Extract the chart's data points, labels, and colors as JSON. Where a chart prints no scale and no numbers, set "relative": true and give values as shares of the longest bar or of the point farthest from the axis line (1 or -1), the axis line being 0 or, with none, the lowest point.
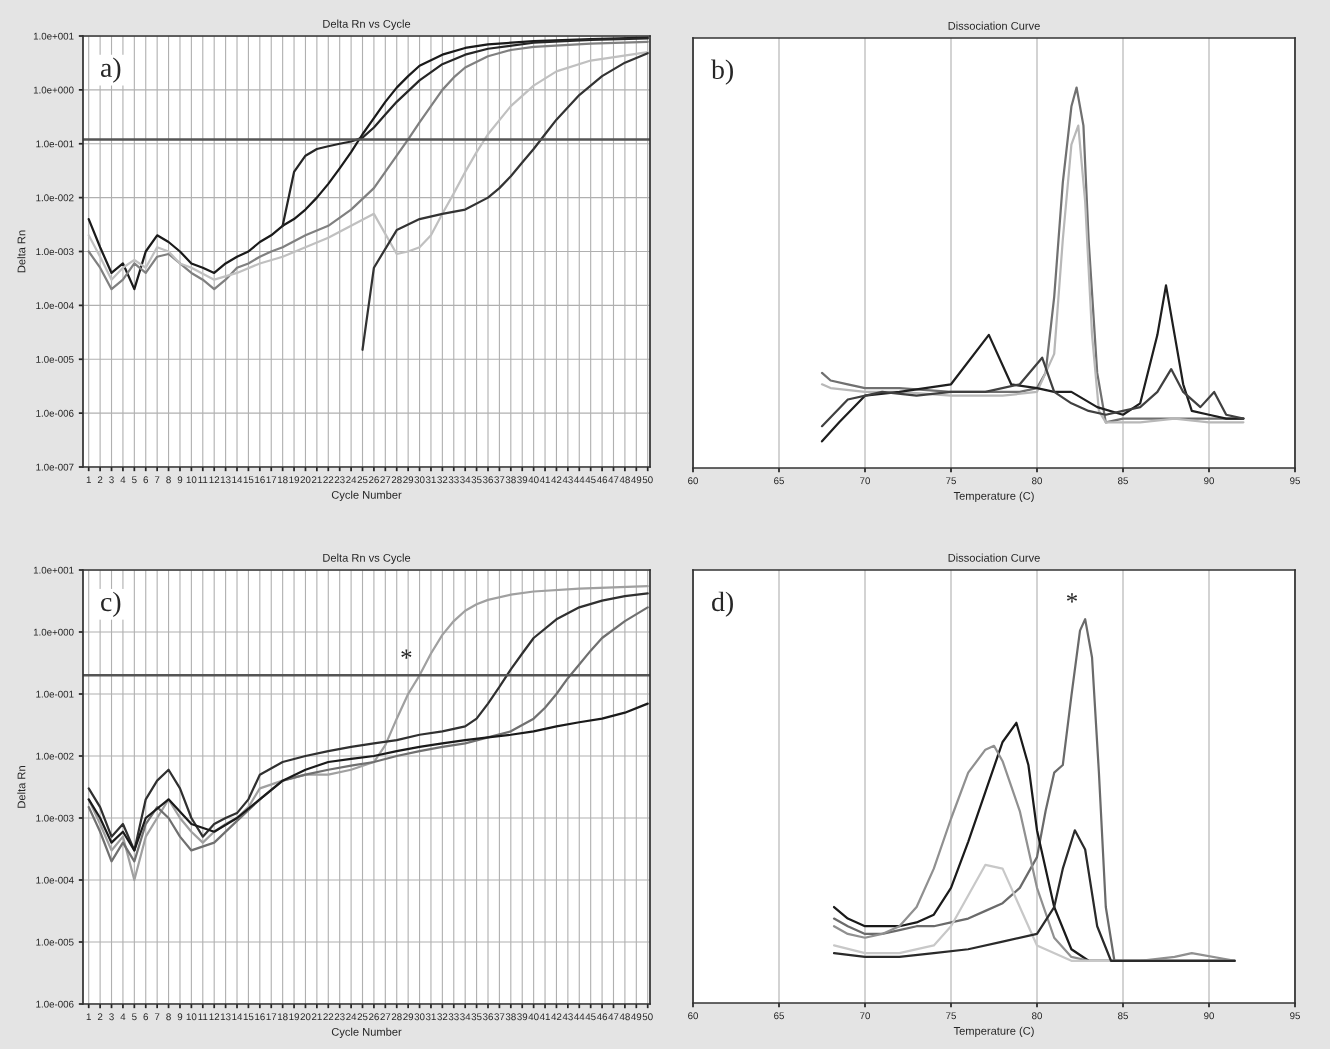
{
  "chart_data": [
    {
      "type": "line",
      "title": "Delta Rn vs Cycle",
      "xlabel": "Cycle Number",
      "ylabel": "Delta Rn",
      "log": true,
      "grid": true,
      "legend": false,
      "xlim": [
        0.5,
        50.2
      ],
      "xticks": [
        1,
        2,
        3,
        4,
        5,
        6,
        7,
        8,
        9,
        10,
        11,
        12,
        13,
        14,
        15,
        16,
        17,
        18,
        19,
        20,
        21,
        22,
        23,
        24,
        25,
        26,
        27,
        28,
        29,
        30,
        31,
        32,
        33,
        34,
        35,
        36,
        37,
        38,
        39,
        40,
        41,
        42,
        43,
        44,
        45,
        46,
        47,
        48,
        49,
        50
      ],
      "ylim": [
        1e-07,
        10
      ],
      "yticks": [
        {
          "value": 1e-07,
          "label": "1.0e-007"
        },
        {
          "value": 1e-06,
          "label": "1.0e-006"
        },
        {
          "value": 1e-05,
          "label": "1.0e-005"
        },
        {
          "value": 0.0001,
          "label": "1.0e-004"
        },
        {
          "value": 0.001,
          "label": "1.0e-003"
        },
        {
          "value": 0.01,
          "label": "1.0e-002"
        },
        {
          "value": 0.1,
          "label": "1.0e-001"
        },
        {
          "value": 1,
          "label": "1.0e+000"
        },
        {
          "value": 10,
          "label": "1.0e+001"
        }
      ],
      "ref_lines": [
        {
          "axis": "y",
          "value": 0.12,
          "color": "#555555"
        }
      ],
      "annotations": [
        "a)"
      ],
      "series": [
        {
          "color": "#1a1a1a",
          "x": [
            1,
            2,
            3,
            4,
            5,
            6,
            7,
            8,
            9,
            10,
            11,
            12,
            13,
            14,
            15,
            16,
            17,
            18,
            19,
            20,
            21,
            22,
            23,
            24,
            25,
            26,
            27,
            28,
            29,
            30,
            32,
            34,
            36,
            40,
            45,
            50
          ],
          "values": [
            0.004,
            0.0012,
            0.0004,
            0.0006,
            0.0002,
            0.001,
            0.002,
            0.0015,
            0.001,
            0.0006,
            0.0005,
            0.0004,
            0.0006,
            0.0008,
            0.001,
            0.0015,
            0.002,
            0.003,
            0.004,
            0.006,
            0.01,
            0.018,
            0.035,
            0.07,
            0.15,
            0.3,
            0.6,
            1.1,
            1.8,
            2.8,
            4.5,
            6,
            7,
            8,
            8.8,
            9.3
          ]
        },
        {
          "color": "#808080",
          "x": [
            1,
            2,
            3,
            4,
            5,
            6,
            7,
            8,
            9,
            10,
            11,
            12,
            13,
            14,
            15,
            16,
            17,
            18,
            20,
            22,
            24,
            26,
            27,
            28,
            29,
            30,
            31,
            32,
            33,
            34,
            36,
            38,
            40,
            45,
            50
          ],
          "values": [
            0.001,
            0.0005,
            0.0002,
            0.0003,
            0.0006,
            0.0004,
            0.0008,
            0.0009,
            0.0006,
            0.0004,
            0.0003,
            0.0002,
            0.0003,
            0.0005,
            0.0006,
            0.0008,
            0.001,
            0.0012,
            0.002,
            0.003,
            0.006,
            0.015,
            0.03,
            0.06,
            0.12,
            0.25,
            0.5,
            1,
            1.7,
            2.6,
            4.2,
            5.5,
            6.3,
            7.2,
            7.8
          ]
        },
        {
          "color": "#c0c0c0",
          "x": [
            1,
            2,
            3,
            4,
            5,
            6,
            7,
            8,
            9,
            10,
            12,
            14,
            16,
            18,
            20,
            22,
            24,
            26,
            28,
            29,
            30,
            31,
            32,
            33,
            34,
            35,
            36,
            38,
            40,
            42,
            45,
            50
          ],
          "values": [
            0.002,
            0.0008,
            0.0003,
            0.0005,
            0.0007,
            0.0005,
            0.0012,
            0.001,
            0.0006,
            0.0005,
            0.0003,
            0.0004,
            0.0006,
            0.0008,
            0.0012,
            0.0018,
            0.003,
            0.005,
            0.0009,
            0.001,
            0.0012,
            0.002,
            0.005,
            0.012,
            0.03,
            0.07,
            0.15,
            0.5,
            1.2,
            2.2,
            3.5,
            5
          ]
        },
        {
          "color": "#333333",
          "x": [
            25,
            26,
            28,
            30,
            32,
            34,
            36,
            37,
            38,
            39,
            40,
            41,
            42,
            44,
            46,
            48,
            50
          ],
          "values": [
            1.5e-05,
            0.0005,
            0.0025,
            0.004,
            0.005,
            0.006,
            0.01,
            0.015,
            0.025,
            0.045,
            0.08,
            0.15,
            0.28,
            0.8,
            1.8,
            3.2,
            4.8
          ]
        },
        {
          "color": "#262626",
          "x": [
            18,
            19,
            20,
            21,
            22,
            23,
            24,
            25,
            26,
            27,
            28,
            30,
            32,
            34,
            36,
            40,
            45,
            50
          ],
          "values": [
            0.003,
            0.03,
            0.06,
            0.08,
            0.09,
            0.1,
            0.11,
            0.13,
            0.2,
            0.35,
            0.6,
            1.5,
            3,
            4.5,
            5.8,
            7.5,
            8.5,
            9
          ]
        }
      ]
    },
    {
      "type": "line",
      "title": "Dissociation Curve",
      "xlabel": "Temperature (C)",
      "relative": true,
      "grid": "x",
      "legend": false,
      "xlim": [
        60,
        95
      ],
      "xticks": [
        60,
        65,
        70,
        75,
        80,
        85,
        90,
        95
      ],
      "annotations": [
        "b)"
      ],
      "series": [
        {
          "color": "#707070",
          "x": [
            67.5,
            68,
            69,
            70,
            72,
            75,
            78,
            79,
            80,
            80.5,
            81,
            81.5,
            82,
            82.3,
            82.7,
            83,
            83.5,
            84,
            85,
            87,
            90,
            92
          ],
          "values": [
            0.25,
            0.23,
            0.22,
            0.21,
            0.21,
            0.2,
            0.2,
            0.2,
            0.21,
            0.25,
            0.45,
            0.75,
            0.95,
            1,
            0.9,
            0.6,
            0.25,
            0.12,
            0.13,
            0.13,
            0.13,
            0.13
          ]
        },
        {
          "color": "#b8b8b8",
          "x": [
            67.5,
            68,
            70,
            72,
            75,
            78,
            80,
            81,
            81.5,
            82,
            82.4,
            82.8,
            83.2,
            83.6,
            84,
            86,
            88,
            90,
            92
          ],
          "values": [
            0.22,
            0.21,
            0.2,
            0.2,
            0.19,
            0.19,
            0.2,
            0.3,
            0.6,
            0.85,
            0.9,
            0.7,
            0.35,
            0.15,
            0.12,
            0.12,
            0.13,
            0.12,
            0.12
          ]
        },
        {
          "color": "#1e1e1e",
          "x": [
            67.5,
            68.5,
            70,
            72,
            75,
            77.2,
            78.5,
            80,
            81,
            82,
            83.5,
            85,
            86,
            87,
            87.5,
            88,
            88.5,
            89,
            90,
            91,
            92
          ],
          "values": [
            0.07,
            0.12,
            0.19,
            0.2,
            0.22,
            0.35,
            0.22,
            0.21,
            0.2,
            0.2,
            0.16,
            0.14,
            0.17,
            0.35,
            0.48,
            0.35,
            0.22,
            0.15,
            0.14,
            0.13,
            0.13
          ]
        },
        {
          "color": "#404040",
          "x": [
            67.5,
            69,
            71,
            73,
            75,
            77,
            79,
            80.3,
            81,
            82,
            83,
            84,
            85,
            86,
            87,
            87.8,
            88.5,
            89.5,
            90.3,
            91,
            92
          ],
          "values": [
            0.11,
            0.18,
            0.2,
            0.19,
            0.2,
            0.2,
            0.22,
            0.29,
            0.2,
            0.17,
            0.15,
            0.14,
            0.15,
            0.16,
            0.2,
            0.26,
            0.2,
            0.16,
            0.2,
            0.14,
            0.13
          ]
        }
      ]
    },
    {
      "type": "line",
      "title": "Delta Rn vs Cycle",
      "xlabel": "Cycle Number",
      "ylabel": "Delta Rn",
      "log": true,
      "grid": true,
      "legend": false,
      "xlim": [
        0.5,
        50.2
      ],
      "xticks": [
        1,
        2,
        3,
        4,
        5,
        6,
        7,
        8,
        9,
        10,
        11,
        12,
        13,
        14,
        15,
        16,
        17,
        18,
        19,
        20,
        21,
        22,
        23,
        24,
        25,
        26,
        27,
        28,
        29,
        30,
        31,
        32,
        33,
        34,
        35,
        36,
        37,
        38,
        39,
        40,
        41,
        42,
        43,
        44,
        45,
        46,
        47,
        48,
        49,
        50
      ],
      "ylim": [
        1e-06,
        10
      ],
      "yticks": [
        {
          "value": 1e-06,
          "label": "1.0e-006"
        },
        {
          "value": 1e-05,
          "label": "1.0e-005"
        },
        {
          "value": 0.0001,
          "label": "1.0e-004"
        },
        {
          "value": 0.001,
          "label": "1.0e-003"
        },
        {
          "value": 0.01,
          "label": "1.0e-002"
        },
        {
          "value": 0.1,
          "label": "1.0e-001"
        },
        {
          "value": 1,
          "label": "1.0e+000"
        },
        {
          "value": 10,
          "label": "1.0e+001"
        }
      ],
      "ref_lines": [
        {
          "axis": "y",
          "value": 0.2,
          "color": "#555555"
        }
      ],
      "annotations": [
        "c)",
        {
          "text": "*",
          "x": 30,
          "y": 0.2
        }
      ],
      "series": [
        {
          "color": "#a0a0a0",
          "x": [
            1,
            2,
            3,
            4,
            5,
            6,
            7,
            8,
            9,
            10,
            11,
            12,
            13,
            14,
            15,
            16,
            18,
            20,
            22,
            24,
            26,
            27,
            28,
            29,
            30,
            31,
            32,
            33,
            34,
            35,
            36,
            38,
            40,
            44,
            50
          ],
          "values": [
            0.002,
            0.0008,
            0.0003,
            0.0005,
            0.0001,
            0.0005,
            0.001,
            0.002,
            0.001,
            0.0006,
            0.0004,
            0.0006,
            0.0008,
            0.001,
            0.0015,
            0.003,
            0.004,
            0.005,
            0.005,
            0.006,
            0.008,
            0.015,
            0.04,
            0.1,
            0.2,
            0.45,
            0.9,
            1.5,
            2.2,
            2.8,
            3.3,
            4,
            4.5,
            5,
            5.5
          ]
        },
        {
          "color": "#303030",
          "x": [
            1,
            2,
            3,
            4,
            5,
            6,
            7,
            8,
            9,
            10,
            11,
            12,
            13,
            14,
            15,
            16,
            18,
            20,
            22,
            24,
            26,
            28,
            30,
            32,
            34,
            35,
            36,
            37,
            38,
            39,
            40,
            42,
            44,
            46,
            48,
            50
          ],
          "values": [
            0.003,
            0.0015,
            0.0005,
            0.0008,
            0.0003,
            0.002,
            0.004,
            0.006,
            0.003,
            0.001,
            0.0005,
            0.0008,
            0.001,
            0.0012,
            0.002,
            0.005,
            0.008,
            0.01,
            0.012,
            0.014,
            0.016,
            0.018,
            0.022,
            0.025,
            0.03,
            0.04,
            0.07,
            0.13,
            0.25,
            0.45,
            0.8,
            1.6,
            2.5,
            3.2,
            3.8,
            4.2
          ]
        },
        {
          "color": "#707070",
          "x": [
            1,
            2,
            3,
            4,
            5,
            6,
            7,
            8,
            9,
            10,
            12,
            14,
            16,
            18,
            20,
            22,
            24,
            26,
            28,
            30,
            32,
            34,
            36,
            38,
            40,
            41,
            42,
            43,
            44,
            45,
            46,
            48,
            50
          ],
          "values": [
            0.0015,
            0.0006,
            0.0002,
            0.0004,
            0.0002,
            0.0008,
            0.0015,
            0.001,
            0.0005,
            0.0003,
            0.0004,
            0.0009,
            0.002,
            0.004,
            0.005,
            0.006,
            0.007,
            0.008,
            0.01,
            0.012,
            0.014,
            0.016,
            0.02,
            0.025,
            0.04,
            0.06,
            0.1,
            0.18,
            0.3,
            0.5,
            0.8,
            1.5,
            2.5
          ]
        },
        {
          "color": "#1a1a1a",
          "x": [
            1,
            2,
            3,
            4,
            5,
            6,
            8,
            10,
            12,
            14,
            16,
            18,
            20,
            22,
            24,
            26,
            28,
            30,
            32,
            34,
            36,
            38,
            40,
            42,
            44,
            46,
            48,
            50
          ],
          "values": [
            0.002,
            0.001,
            0.0004,
            0.0006,
            0.0003,
            0.001,
            0.002,
            0.0008,
            0.0006,
            0.001,
            0.002,
            0.004,
            0.006,
            0.008,
            0.009,
            0.01,
            0.012,
            0.014,
            0.016,
            0.018,
            0.02,
            0.022,
            0.025,
            0.03,
            0.035,
            0.04,
            0.05,
            0.07
          ]
        }
      ]
    },
    {
      "type": "line",
      "title": "Dissociation Curve",
      "xlabel": "Temperature (C)",
      "relative": true,
      "grid": "x",
      "legend": false,
      "xlim": [
        60,
        95
      ],
      "xticks": [
        60,
        65,
        70,
        75,
        80,
        85,
        90,
        95
      ],
      "annotations": [
        "d)",
        {
          "text": "*",
          "x": 82.8,
          "y": 1
        }
      ],
      "series": [
        {
          "color": "#6a6a6a",
          "x": [
            68.2,
            69,
            70,
            71,
            72,
            73,
            74,
            75,
            76,
            77,
            78,
            79,
            80,
            80.5,
            81,
            81.5,
            82,
            82.5,
            82.8,
            83.2,
            83.6,
            84,
            84.5,
            85,
            87,
            89,
            91.5
          ],
          "values": [
            0.22,
            0.2,
            0.18,
            0.18,
            0.19,
            0.2,
            0.2,
            0.21,
            0.22,
            0.24,
            0.26,
            0.3,
            0.38,
            0.5,
            0.6,
            0.62,
            0.8,
            0.97,
            1,
            0.9,
            0.6,
            0.25,
            0.11,
            0.11,
            0.11,
            0.11,
            0.11
          ]
        },
        {
          "color": "#1a1a1a",
          "x": [
            68.2,
            69,
            70,
            71,
            72,
            73,
            74,
            75,
            76,
            77,
            78,
            78.8,
            79.5,
            80,
            81,
            82,
            83,
            84,
            85,
            88,
            91.5
          ],
          "values": [
            0.25,
            0.22,
            0.2,
            0.2,
            0.2,
            0.21,
            0.23,
            0.3,
            0.42,
            0.55,
            0.68,
            0.73,
            0.62,
            0.45,
            0.25,
            0.14,
            0.11,
            0.11,
            0.11,
            0.11,
            0.11
          ]
        },
        {
          "color": "#909090",
          "x": [
            68.2,
            69,
            70,
            71,
            72,
            73,
            74,
            75,
            76,
            77,
            77.5,
            78,
            79,
            80,
            81,
            82,
            83,
            84,
            86,
            88,
            89,
            91.5
          ],
          "values": [
            0.2,
            0.18,
            0.17,
            0.18,
            0.2,
            0.25,
            0.35,
            0.48,
            0.6,
            0.66,
            0.67,
            0.63,
            0.5,
            0.3,
            0.17,
            0.12,
            0.11,
            0.11,
            0.11,
            0.12,
            0.13,
            0.11
          ]
        },
        {
          "color": "#c8c8c8",
          "x": [
            68.2,
            70,
            72,
            74,
            75,
            76,
            77,
            78,
            79,
            80,
            82,
            84,
            88,
            91.5
          ],
          "values": [
            0.15,
            0.13,
            0.13,
            0.15,
            0.2,
            0.28,
            0.36,
            0.35,
            0.25,
            0.15,
            0.11,
            0.11,
            0.11,
            0.11
          ]
        },
        {
          "color": "#2a2a2a",
          "x": [
            68.2,
            70,
            72,
            74,
            76,
            78,
            80,
            81,
            81.5,
            82.2,
            82.8,
            83.5,
            84.3,
            86,
            91.5
          ],
          "values": [
            0.13,
            0.12,
            0.12,
            0.13,
            0.14,
            0.16,
            0.18,
            0.25,
            0.35,
            0.45,
            0.4,
            0.2,
            0.11,
            0.11,
            0.11
          ]
        }
      ]
    }
  ]
}
